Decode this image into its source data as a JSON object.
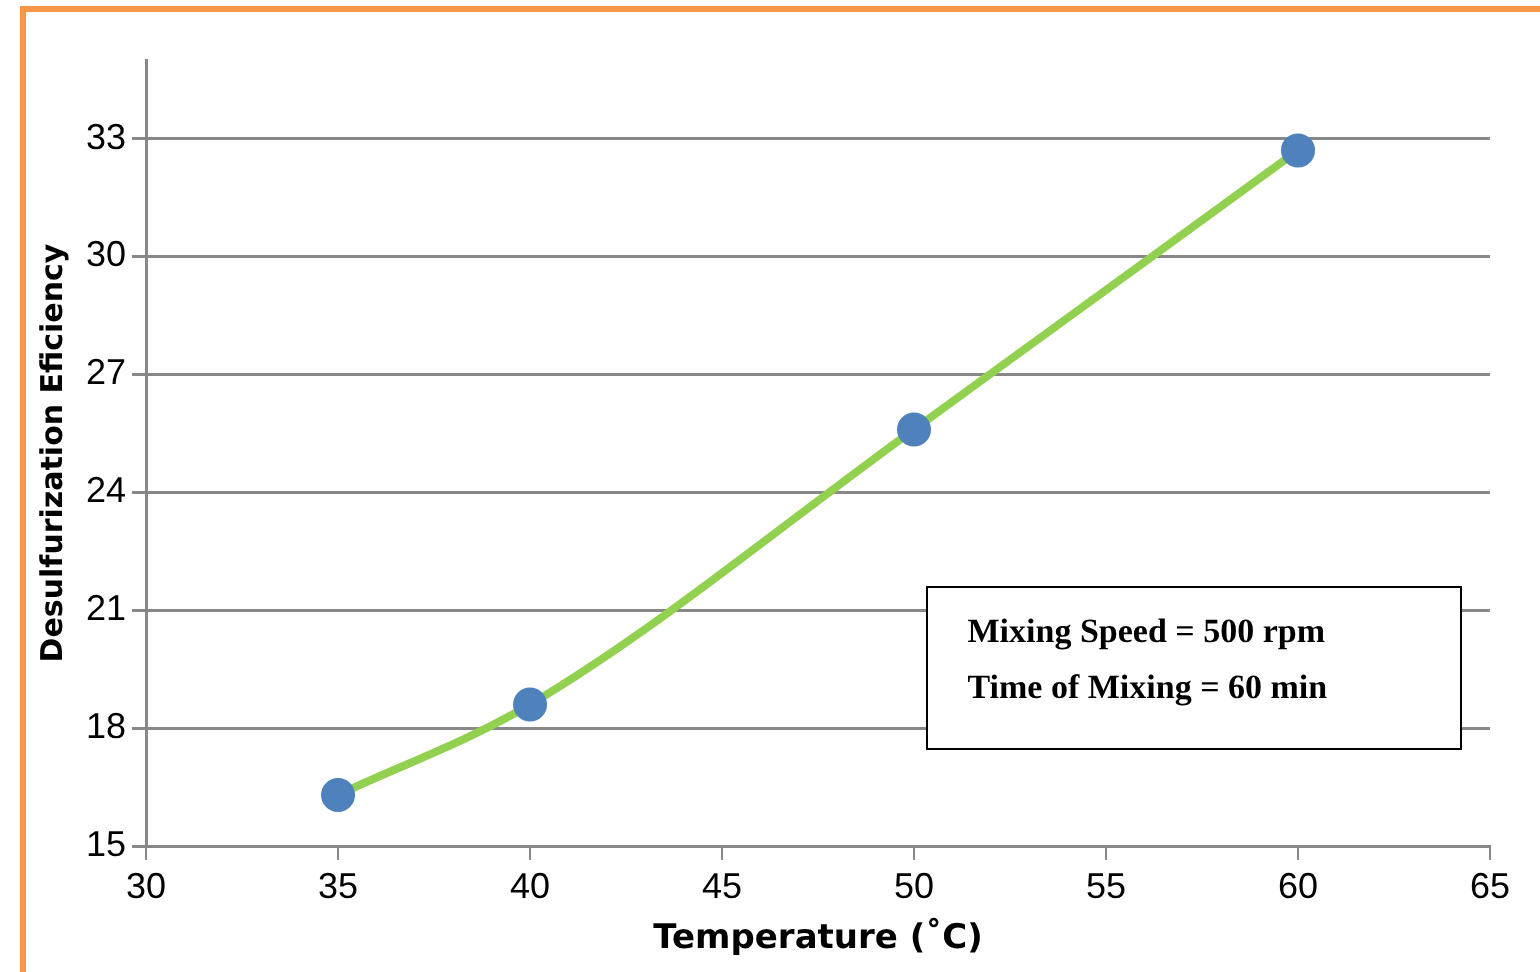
{
  "chart_data": {
    "type": "line",
    "xlabel": "Temperature (˚C)",
    "ylabel": "Desulfurization Eficiency",
    "x": [
      35,
      40,
      50,
      60
    ],
    "series": [
      {
        "color": "#92d050",
        "colors": [
          "#4f81bd",
          "#4f81bd",
          "#4f81bd",
          "#4f81bd"
        ],
        "values": [
          16.3,
          18.6,
          25.6,
          32.7
        ]
      }
    ],
    "xlim": [
      30,
      65
    ],
    "xticks": [
      30,
      35,
      40,
      45,
      50,
      55,
      60,
      65
    ],
    "ylim": [
      15,
      35
    ],
    "yticks": [
      15,
      18,
      21,
      24,
      27,
      30,
      33
    ],
    "grid": "y",
    "legend": false,
    "marker": "circle",
    "annotations": [
      "Mixing Speed = 500 rpm",
      "Time of Mixing = 60 min"
    ]
  }
}
